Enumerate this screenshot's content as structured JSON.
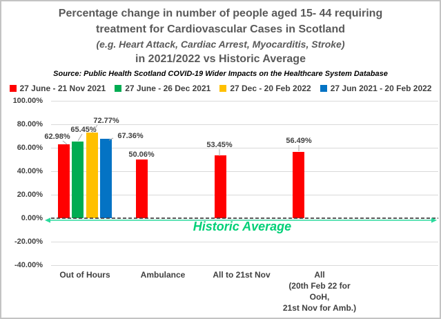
{
  "title": {
    "line1": "Percentage change in number of people aged 15- 44 requiring",
    "line2": "treatment for Cardiovascular Cases in Scotland",
    "line3": "(e.g. Heart Attack, Cardiac Arrest, Myocarditis, Stroke)",
    "line4": "in 2021/2022 vs Historic Average",
    "source": "Source: Public Health Scotland COVID-19 Wider Impacts on the Healthcare System Database"
  },
  "legend": {
    "items": [
      {
        "label": "27 June - 21 Nov 2021",
        "color": "#FF0000"
      },
      {
        "label": "27 June - 26 Dec 2021",
        "color": "#00AC52"
      },
      {
        "label": "27 Dec - 20 Feb 2022",
        "color": "#FFC000"
      },
      {
        "label": "27 Jun 2021 - 20 Feb 2022",
        "color": "#0473C4"
      }
    ]
  },
  "yaxis": {
    "ticks": [
      "100.00%",
      "80.00%",
      "60.00%",
      "40.00%",
      "20.00%",
      "0.00%",
      "-20.00%",
      "-40.00%"
    ],
    "tick_values": [
      100,
      80,
      60,
      40,
      20,
      0,
      -20,
      -40
    ]
  },
  "annotation": {
    "historic_average_label": "Historic Average",
    "text_color": "#00D077",
    "line_color": "#2BDA9D",
    "zero_line_color": "#404040"
  },
  "colors": {
    "title_gray": "#595959",
    "text_dark": "#404040",
    "gridline": "#D9D9D9",
    "leader_line": "#A6A6A6"
  },
  "chart_data": {
    "type": "bar",
    "title": "Percentage change in number of people aged 15- 44 requiring treatment for Cardiovascular Cases in Scotland (e.g. Heart Attack, Cardiac Arrest, Myocarditis, Stroke) in 2021/2022 vs Historic Average",
    "subtitle": "Source: Public Health Scotland COVID-19 Wider Impacts on the Healthcare System Database",
    "categories": [
      "Out of Hours",
      "Ambulance",
      "All to 21st Nov",
      "All (20th Feb 22 for OoH, 21st Nov for Amb.)"
    ],
    "xaxis_label_lines": [
      [
        "Out of Hours"
      ],
      [
        "Ambulance"
      ],
      [
        "All to 21st Nov"
      ],
      [
        "All",
        "(20th Feb 22 for",
        "OoH,",
        "21st Nov for Amb.)"
      ]
    ],
    "series": [
      {
        "name": "27 June - 21 Nov 2021",
        "color": "#FF0000",
        "values": [
          62.98,
          50.06,
          53.45,
          56.49
        ]
      },
      {
        "name": "27 June - 26 Dec 2021",
        "color": "#00AC52",
        "values": [
          65.45,
          null,
          null,
          null
        ]
      },
      {
        "name": "27 Dec - 20 Feb 2022",
        "color": "#FFC000",
        "values": [
          72.77,
          null,
          null,
          null
        ]
      },
      {
        "name": "27 Jun 2021 - 20 Feb 2022",
        "color": "#0473C4",
        "values": [
          67.36,
          null,
          null,
          null
        ]
      }
    ],
    "data_labels": [
      "62.98%",
      "65.45%",
      "72.77%",
      "67.36%",
      "50.06%",
      "53.45%",
      "56.49%"
    ],
    "ylim": [
      -40,
      100
    ],
    "ytick_step": 20,
    "grid": true,
    "legend_position": "top",
    "zero_line_style": "dashed",
    "annotation": "Historic Average"
  }
}
